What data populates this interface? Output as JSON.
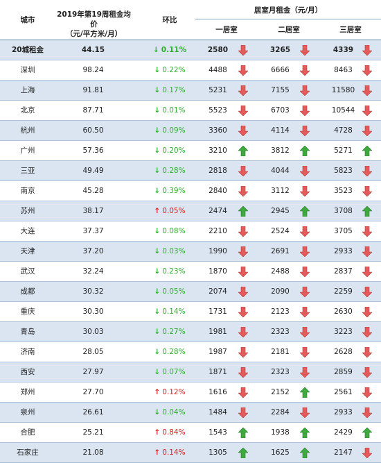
{
  "header": {
    "city": "城市",
    "avg_price_line1": "2019年第19周租金均价",
    "avg_price_line2": "（元/平方米/月）",
    "change": "环比",
    "room_rent": "居室月租金（元/月）",
    "one_room": "一居室",
    "two_room": "二居室",
    "three_room": "三居室"
  },
  "colors": {
    "up": "#d91e18",
    "down": "#2bb02b",
    "alt_row": "#dbe5f1",
    "up_arrow": "#e35b5b",
    "down_arrow_green": "#3fa83f"
  },
  "rows": [
    {
      "city": "20城租金",
      "price": "44.15",
      "dir": "down",
      "arrow": "↓",
      "change": "0.11%",
      "r1": "2580",
      "r1d": "down",
      "r2": "3265",
      "r2d": "down",
      "r3": "4339",
      "r3d": "down"
    },
    {
      "city": "深圳",
      "price": "98.24",
      "dir": "down",
      "arrow": "↓",
      "change": "0.22%",
      "r1": "4488",
      "r1d": "down",
      "r2": "6666",
      "r2d": "down",
      "r3": "8463",
      "r3d": "down"
    },
    {
      "city": "上海",
      "price": "91.81",
      "dir": "down",
      "arrow": "↓",
      "change": "0.17%",
      "r1": "5231",
      "r1d": "down",
      "r2": "7155",
      "r2d": "down",
      "r3": "11580",
      "r3d": "down"
    },
    {
      "city": "北京",
      "price": "87.71",
      "dir": "down",
      "arrow": "↓",
      "change": "0.01%",
      "r1": "5523",
      "r1d": "down",
      "r2": "6703",
      "r2d": "down",
      "r3": "10544",
      "r3d": "down"
    },
    {
      "city": "杭州",
      "price": "60.50",
      "dir": "down",
      "arrow": "↓",
      "change": "0.09%",
      "r1": "3360",
      "r1d": "down",
      "r2": "4114",
      "r2d": "down",
      "r3": "4728",
      "r3d": "down"
    },
    {
      "city": "广州",
      "price": "57.36",
      "dir": "down",
      "arrow": "↓",
      "change": "0.20%",
      "r1": "3210",
      "r1d": "up",
      "r2": "3812",
      "r2d": "up",
      "r3": "5271",
      "r3d": "up"
    },
    {
      "city": "三亚",
      "price": "49.49",
      "dir": "down",
      "arrow": "↓",
      "change": "0.28%",
      "r1": "2818",
      "r1d": "down",
      "r2": "4044",
      "r2d": "down",
      "r3": "5823",
      "r3d": "down"
    },
    {
      "city": "南京",
      "price": "45.28",
      "dir": "down",
      "arrow": "↓",
      "change": "0.39%",
      "r1": "2840",
      "r1d": "down",
      "r2": "3112",
      "r2d": "down",
      "r3": "3523",
      "r3d": "down"
    },
    {
      "city": "苏州",
      "price": "38.17",
      "dir": "up",
      "arrow": "↑",
      "change": "0.05%",
      "r1": "2474",
      "r1d": "up",
      "r2": "2945",
      "r2d": "up",
      "r3": "3708",
      "r3d": "up"
    },
    {
      "city": "大连",
      "price": "37.37",
      "dir": "down",
      "arrow": "↓",
      "change": "0.08%",
      "r1": "2210",
      "r1d": "down",
      "r2": "2524",
      "r2d": "down",
      "r3": "3705",
      "r3d": "down"
    },
    {
      "city": "天津",
      "price": "37.20",
      "dir": "down",
      "arrow": "↓",
      "change": "0.03%",
      "r1": "1990",
      "r1d": "down",
      "r2": "2691",
      "r2d": "down",
      "r3": "2933",
      "r3d": "down"
    },
    {
      "city": "武汉",
      "price": "32.24",
      "dir": "down",
      "arrow": "↓",
      "change": "0.23%",
      "r1": "1870",
      "r1d": "down",
      "r2": "2488",
      "r2d": "down",
      "r3": "2837",
      "r3d": "down"
    },
    {
      "city": "成都",
      "price": "30.32",
      "dir": "down",
      "arrow": "↓",
      "change": "0.05%",
      "r1": "2074",
      "r1d": "down",
      "r2": "2090",
      "r2d": "down",
      "r3": "2259",
      "r3d": "down"
    },
    {
      "city": "重庆",
      "price": "30.30",
      "dir": "down",
      "arrow": "↓",
      "change": "0.14%",
      "r1": "1731",
      "r1d": "down",
      "r2": "2123",
      "r2d": "down",
      "r3": "2630",
      "r3d": "down"
    },
    {
      "city": "青岛",
      "price": "30.03",
      "dir": "down",
      "arrow": "↓",
      "change": "0.27%",
      "r1": "1981",
      "r1d": "down",
      "r2": "2323",
      "r2d": "down",
      "r3": "3223",
      "r3d": "down"
    },
    {
      "city": "济南",
      "price": "28.05",
      "dir": "down",
      "arrow": "↓",
      "change": "0.28%",
      "r1": "1987",
      "r1d": "down",
      "r2": "2181",
      "r2d": "down",
      "r3": "2628",
      "r3d": "down"
    },
    {
      "city": "西安",
      "price": "27.97",
      "dir": "down",
      "arrow": "↓",
      "change": "0.07%",
      "r1": "1871",
      "r1d": "down",
      "r2": "2323",
      "r2d": "down",
      "r3": "2859",
      "r3d": "down"
    },
    {
      "city": "郑州",
      "price": "27.70",
      "dir": "up",
      "arrow": "↑",
      "change": "0.12%",
      "r1": "1616",
      "r1d": "down",
      "r2": "2152",
      "r2d": "up",
      "r3": "2561",
      "r3d": "down"
    },
    {
      "city": "泉州",
      "price": "26.61",
      "dir": "down",
      "arrow": "↓",
      "change": "0.04%",
      "r1": "1484",
      "r1d": "down",
      "r2": "2284",
      "r2d": "down",
      "r3": "2933",
      "r3d": "down"
    },
    {
      "city": "合肥",
      "price": "25.21",
      "dir": "up",
      "arrow": "↑",
      "change": "0.84%",
      "r1": "1543",
      "r1d": "up",
      "r2": "1938",
      "r2d": "up",
      "r3": "2429",
      "r3d": "up"
    },
    {
      "city": "石家庄",
      "price": "21.08",
      "dir": "up",
      "arrow": "↑",
      "change": "0.14%",
      "r1": "1305",
      "r1d": "up",
      "r2": "1625",
      "r2d": "up",
      "r3": "2147",
      "r3d": "down"
    }
  ]
}
